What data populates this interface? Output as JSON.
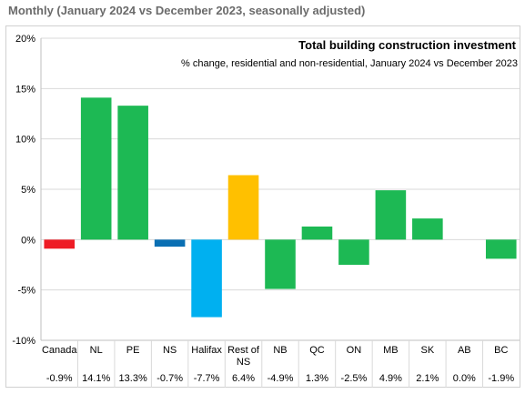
{
  "header": {
    "text": "Monthly (January 2024 vs December 2023, seasonally adjusted)"
  },
  "chart_data": {
    "type": "bar",
    "title": "Total building construction investment",
    "subtitle": "% change, residential and non-residential, January 2024 vs December 2023",
    "xlabel": "",
    "ylabel": "",
    "ylim": [
      -10,
      20
    ],
    "yticks": [
      "20%",
      "15%",
      "10%",
      "5%",
      "0%",
      "-5%",
      "-10%"
    ],
    "grid": true,
    "categories": [
      "Canada",
      "NL",
      "PE",
      "NS",
      "Halifax",
      "Rest of NS",
      "NB",
      "QC",
      "ON",
      "MB",
      "SK",
      "AB",
      "BC"
    ],
    "category_lines": [
      [
        "Canada"
      ],
      [
        "NL"
      ],
      [
        "PE"
      ],
      [
        "NS"
      ],
      [
        "Halifax"
      ],
      [
        "Rest of",
        "NS"
      ],
      [
        "NB"
      ],
      [
        "QC"
      ],
      [
        "ON"
      ],
      [
        "MB"
      ],
      [
        "SK"
      ],
      [
        "AB"
      ],
      [
        "BC"
      ]
    ],
    "values": [
      -0.9,
      14.1,
      13.3,
      -0.7,
      -7.7,
      6.4,
      -4.9,
      1.3,
      -2.5,
      4.9,
      2.1,
      0.0,
      -1.9
    ],
    "value_labels": [
      "-0.9%",
      "14.1%",
      "13.3%",
      "-0.7%",
      "-7.7%",
      "6.4%",
      "-4.9%",
      "1.3%",
      "-2.5%",
      "4.9%",
      "2.1%",
      "0.0%",
      "-1.9%"
    ],
    "colors": [
      "#ee1c25",
      "#1db954",
      "#1db954",
      "#0a6fb3",
      "#00b0f0",
      "#ffc000",
      "#1db954",
      "#1db954",
      "#1db954",
      "#1db954",
      "#1db954",
      "#1db954",
      "#1db954"
    ],
    "gridline_color": "#d9d9d9"
  }
}
